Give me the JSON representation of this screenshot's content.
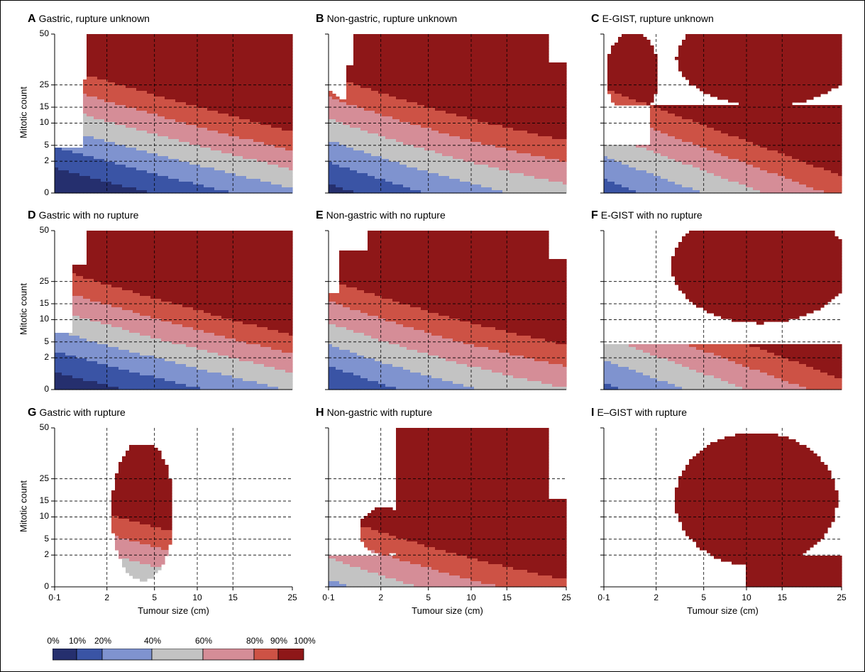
{
  "chart_data": {
    "type": "heatmap",
    "shared": {
      "xlabel": "Tumour size (cm)",
      "ylabel": "Mitotic count",
      "x_ticks": [
        "0·1",
        "2",
        "5",
        "10",
        "15",
        "25"
      ],
      "y_ticks": [
        "0",
        "2",
        "5",
        "10",
        "15",
        "25",
        "50"
      ]
    },
    "legend": {
      "ticks": [
        "0%",
        "10%",
        "20%",
        "40%",
        "60%",
        "80%",
        "90%",
        "100%"
      ],
      "bins": [
        {
          "range": "0-10%",
          "color": "#252f6e"
        },
        {
          "range": "10-20%",
          "color": "#3a54a5"
        },
        {
          "range": "20-40%",
          "color": "#7f93cf"
        },
        {
          "range": "40-60%",
          "color": "#c3c3c3"
        },
        {
          "range": "60-80%",
          "color": "#d58d97"
        },
        {
          "range": "80-90%",
          "color": "#cd5245"
        },
        {
          "range": "90-100%",
          "color": "#8e1718"
        }
      ]
    },
    "panels": [
      {
        "letter": "A",
        "title": "Gastric, rupture unknown",
        "show_ylabel": true,
        "show_xlabel": false
      },
      {
        "letter": "B",
        "title": "Non-gastric, rupture unknown",
        "show_ylabel": false,
        "show_xlabel": false
      },
      {
        "letter": "C",
        "title": "E-GIST, rupture unknown",
        "show_ylabel": false,
        "show_xlabel": false
      },
      {
        "letter": "D",
        "title": "Gastric with no rupture",
        "show_ylabel": true,
        "show_xlabel": false
      },
      {
        "letter": "E",
        "title": "Non-gastric with no rupture",
        "show_ylabel": false,
        "show_xlabel": false
      },
      {
        "letter": "F",
        "title": "E-GIST with no rupture",
        "show_ylabel": false,
        "show_xlabel": false
      },
      {
        "letter": "G",
        "title": "Gastric with rupture",
        "show_ylabel": true,
        "show_xlabel": true
      },
      {
        "letter": "H",
        "title": "Non-gastric with rupture",
        "show_ylabel": false,
        "show_xlabel": true
      },
      {
        "letter": "I",
        "title": "E–GIST with rupture",
        "show_ylabel": false,
        "show_xlabel": true
      }
    ]
  }
}
